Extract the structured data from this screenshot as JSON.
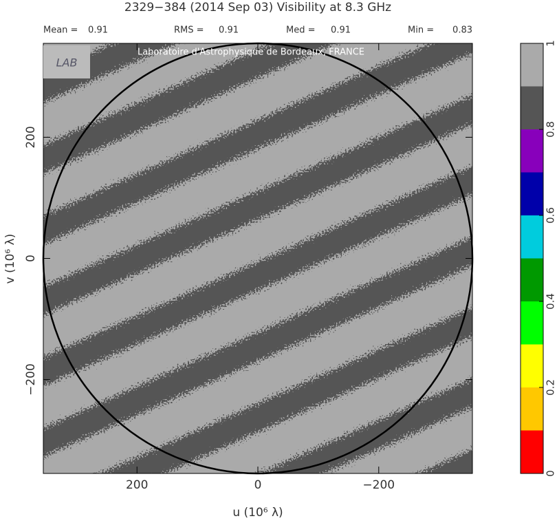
{
  "chart_data": {
    "type": "uvmap",
    "title": "2329−384  (2014 Sep 03)   Visibility at  8.3 GHz",
    "stats": [
      {
        "label": "Mean =",
        "value": 0.91
      },
      {
        "label": "RMS =",
        "value": 0.91
      },
      {
        "label": "Med =",
        "value": 0.91
      },
      {
        "label": "Min =",
        "value": 0.83
      }
    ],
    "watermark": "Laboratoire d'Astrophysique de Bordeaux, FRANCE",
    "logo": "LAB",
    "x_label": "u  (10⁶ λ)",
    "y_label": "v  (10⁶ λ)",
    "xlim": [
      355,
      -355
    ],
    "ylim": [
      -355,
      355
    ],
    "xticks": [
      200,
      0,
      {
        "value": -200,
        "label": "−200"
      }
    ],
    "yticks": [
      {
        "value": -200,
        "label": "−200"
      },
      0,
      200
    ],
    "colorbar": {
      "lim": [
        0,
        1
      ],
      "ticks": [
        0,
        0.2,
        0.4,
        0.6,
        0.8,
        1
      ],
      "colors": [
        "#ff0000",
        "#ffc800",
        "#ffff00",
        "#00ff00",
        "#009900",
        "#00ccdd",
        "#0000aa",
        "#8800bb",
        "#555555",
        "#aaaaaa"
      ]
    }
  }
}
